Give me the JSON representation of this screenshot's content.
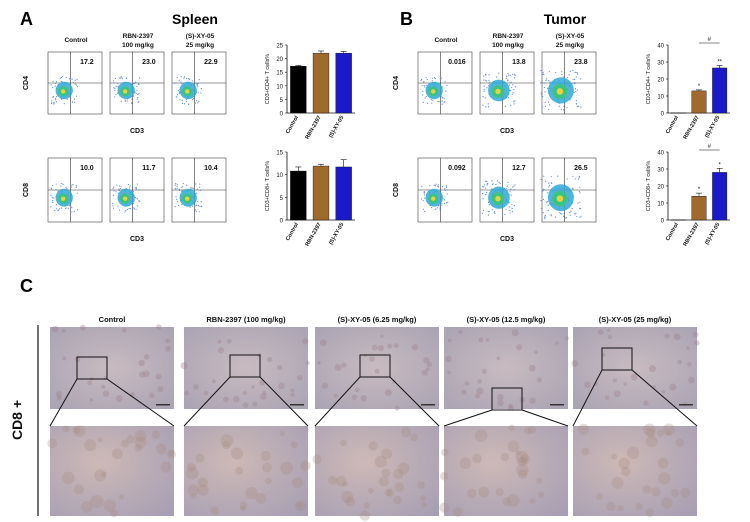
{
  "panels": {
    "A": {
      "letter": "A",
      "title": "Spleen",
      "headers": [
        "Control",
        "RBN-2397\n100 mg/kg",
        "(S)-XY-05\n25 mg/kg"
      ],
      "rows": [
        {
          "ylabel": "CD4",
          "xlabel": "CD3",
          "values": [
            "17.2",
            "23.0",
            "22.9"
          ]
        },
        {
          "ylabel": "CD8",
          "xlabel": "CD3",
          "values": [
            "10.0",
            "11.7",
            "10.4"
          ]
        }
      ]
    },
    "B": {
      "letter": "B",
      "title": "Tumor",
      "headers": [
        "Control",
        "RBN-2397\n100 mg/kg",
        "(S)-XY-05\n25 mg/kg"
      ],
      "rows": [
        {
          "ylabel": "CD4",
          "xlabel": "CD3",
          "values": [
            "0.016",
            "13.8",
            "23.8"
          ]
        },
        {
          "ylabel": "CD8",
          "xlabel": "CD3",
          "values": [
            "0.092",
            "12.7",
            "26.5"
          ]
        }
      ]
    },
    "C": {
      "letter": "C",
      "row_label": "CD8 +",
      "columns": [
        "Control",
        "RBN-2397 (100 mg/kg)",
        "(S)-XY-05 (6.25 mg/kg)",
        "(S)-XY-05 (12.5 mg/kg)",
        "(S)-XY-05 (25 mg/kg)"
      ]
    }
  },
  "colors": {
    "control": "#000000",
    "rbn": "#a06a2c",
    "xy05": "#1a1acb"
  },
  "chart_data": [
    {
      "type": "bar",
      "panel": "A",
      "ylabel": "CD3+CD4+ T cells%",
      "categories": [
        "Control",
        "RBN-2397",
        "(S)-XY-05"
      ],
      "values": [
        17.2,
        22.0,
        22.0
      ],
      "errors": [
        0.3,
        0.8,
        0.6
      ],
      "ylim": [
        0,
        25
      ],
      "yticks": [
        "0",
        "5",
        "10",
        "15",
        "20",
        "25"
      ],
      "annotations": []
    },
    {
      "type": "bar",
      "panel": "A",
      "ylabel": "CD3+CD8+ T cells%",
      "categories": [
        "Control",
        "RBN-2397",
        "(S)-XY-05"
      ],
      "values": [
        10.8,
        11.9,
        11.7
      ],
      "errors": [
        0.9,
        0.4,
        1.6
      ],
      "ylim": [
        0,
        15
      ],
      "yticks": [
        "0",
        "5",
        "10",
        "15"
      ],
      "annotations": []
    },
    {
      "type": "bar",
      "panel": "B",
      "ylabel": "CD3+CD4+ T cells%",
      "categories": [
        "Control",
        "RBN-2397",
        "(S)-XY-05"
      ],
      "values": [
        0.02,
        13.0,
        26.5
      ],
      "errors": [
        0,
        0.6,
        1.5
      ],
      "ylim": [
        0,
        40
      ],
      "yticks": [
        "0",
        "10",
        "20",
        "30",
        "40"
      ],
      "annotations": [
        "*",
        "**",
        "#"
      ]
    },
    {
      "type": "bar",
      "panel": "B",
      "ylabel": "CD3+CD8+ T cells%",
      "categories": [
        "Control",
        "RBN-2397",
        "(S)-XY-05"
      ],
      "values": [
        0.1,
        14.0,
        28.0
      ],
      "errors": [
        0,
        1.8,
        2.4
      ],
      "ylim": [
        0,
        40
      ],
      "yticks": [
        "0",
        "10",
        "20",
        "30",
        "40"
      ],
      "annotations": [
        "*",
        "*",
        "#"
      ]
    }
  ]
}
